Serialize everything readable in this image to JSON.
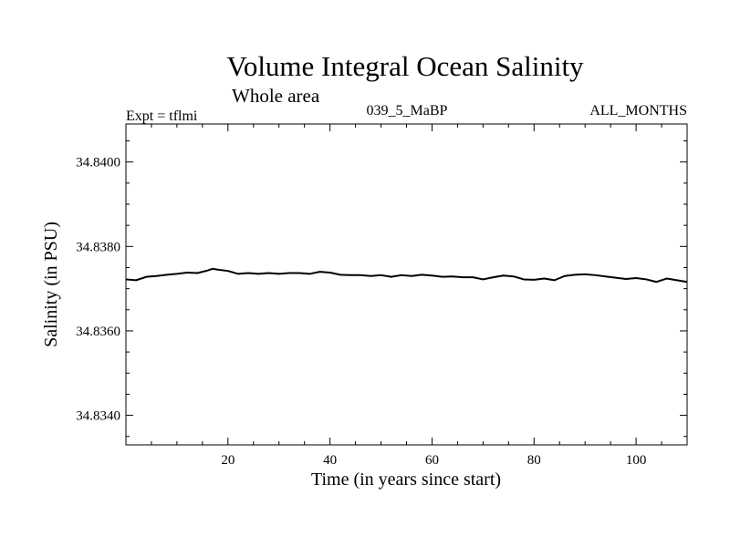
{
  "chart_data": {
    "type": "line",
    "title": "Volume Integral Ocean Salinity",
    "subtitle": "Whole area",
    "annotations": {
      "left": "Expt = tflmi",
      "center": "039_5_MaBP",
      "right": "ALL_MONTHS"
    },
    "xlabel": "Time (in years since start)",
    "ylabel": "Salinity (in PSU)",
    "xlim": [
      0,
      110
    ],
    "ylim": [
      34.8333,
      34.8409
    ],
    "x_ticks": [
      20,
      40,
      60,
      80,
      100
    ],
    "x_tick_labels": [
      "20",
      "40",
      "60",
      "80",
      "100"
    ],
    "y_ticks": [
      34.834,
      34.836,
      34.838,
      34.84
    ],
    "y_tick_labels": [
      "34.8340",
      "34.8360",
      "34.8380",
      "34.8400"
    ],
    "grid": false,
    "series": [
      {
        "name": "salinity",
        "color": "#000000",
        "x": [
          0,
          2,
          4,
          6,
          8,
          10,
          12,
          14,
          16,
          17,
          18,
          20,
          22,
          24,
          26,
          28,
          30,
          32,
          34,
          36,
          38,
          40,
          42,
          44,
          46,
          48,
          50,
          52,
          54,
          56,
          58,
          60,
          62,
          64,
          66,
          68,
          70,
          72,
          74,
          76,
          78,
          80,
          82,
          84,
          86,
          88,
          90,
          92,
          94,
          96,
          98,
          100,
          102,
          104,
          106,
          108,
          110
        ],
        "values": [
          34.83722,
          34.8372,
          34.83728,
          34.8373,
          34.83733,
          34.83735,
          34.83738,
          34.83737,
          34.83743,
          34.83747,
          34.83745,
          34.83742,
          34.83735,
          34.83737,
          34.83735,
          34.83737,
          34.83735,
          34.83737,
          34.83737,
          34.83735,
          34.8374,
          34.83738,
          34.83733,
          34.83732,
          34.83732,
          34.8373,
          34.83732,
          34.83728,
          34.83732,
          34.8373,
          34.83733,
          34.83731,
          34.83728,
          34.83729,
          34.83727,
          34.83727,
          34.83722,
          34.83727,
          34.83731,
          34.83729,
          34.83722,
          34.83721,
          34.83724,
          34.8372,
          34.8373,
          34.83733,
          34.83734,
          34.83732,
          34.83729,
          34.83726,
          34.83723,
          34.83725,
          34.83722,
          34.83716,
          34.83724,
          34.8372,
          34.83716
        ]
      }
    ]
  }
}
